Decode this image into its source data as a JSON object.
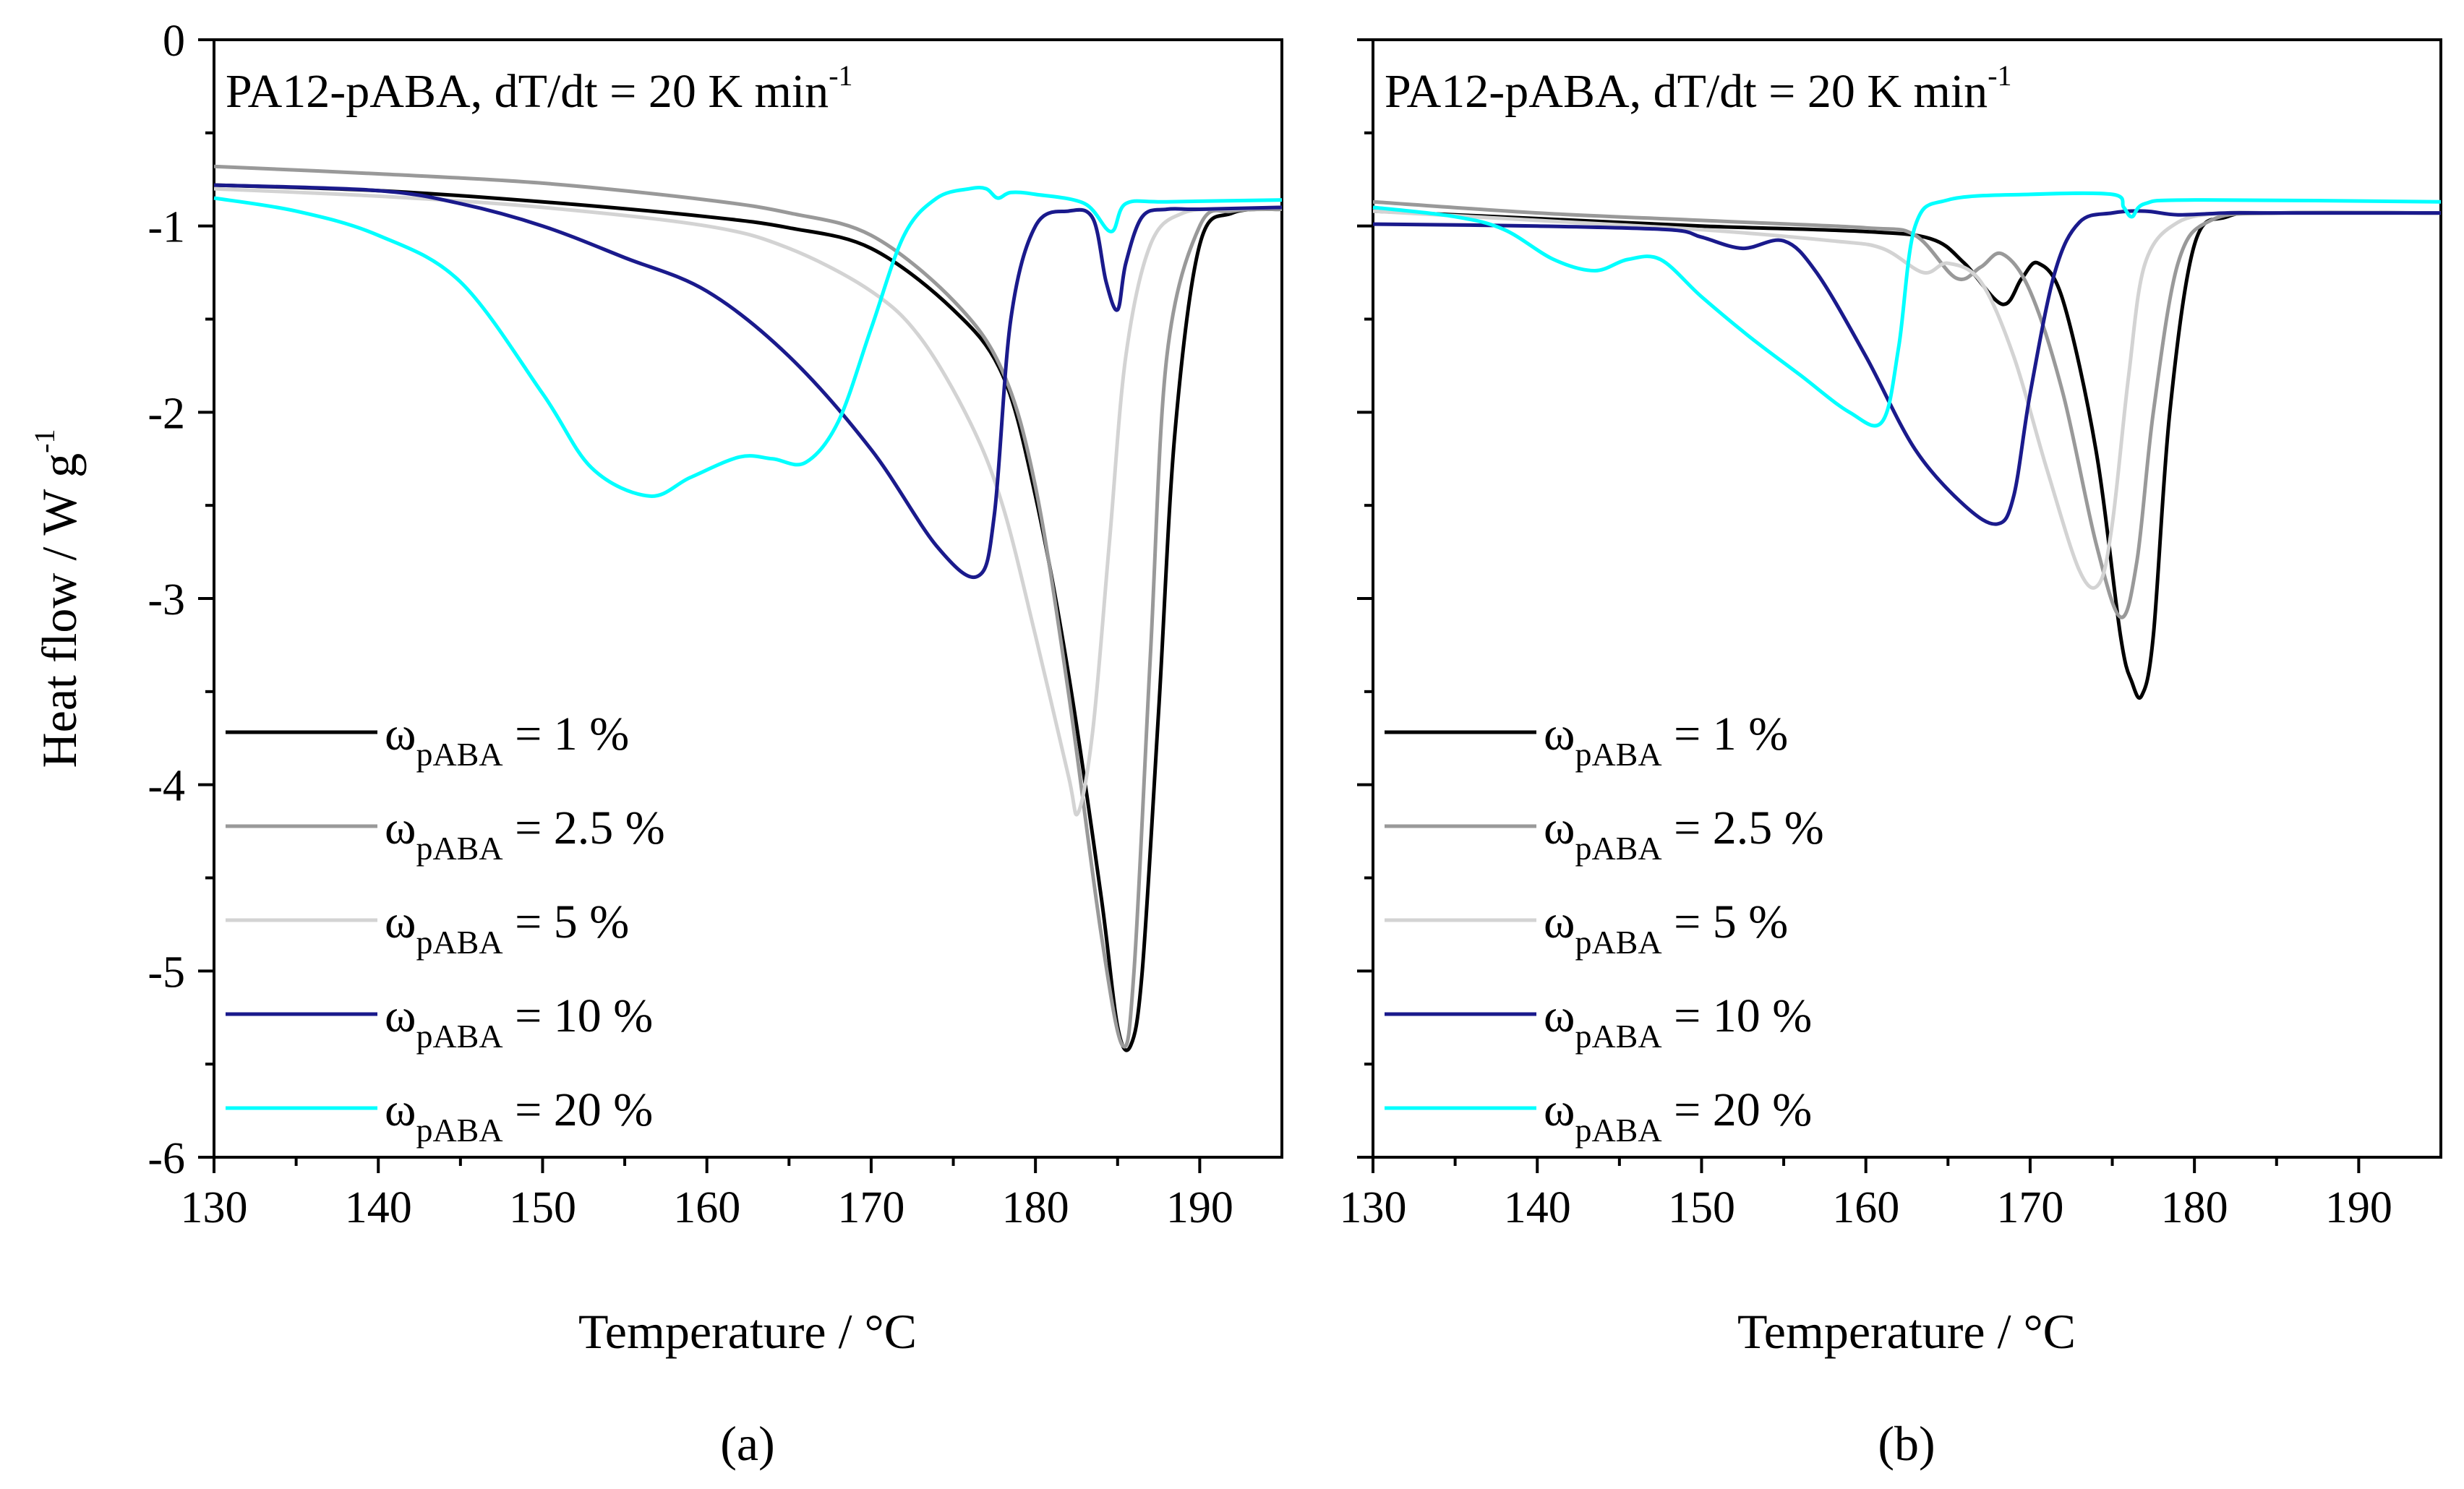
{
  "chart_data": [
    {
      "id": "a",
      "type": "line",
      "title": "PA12-pABA, dT/dt = 20 K min",
      "title_sup": "-1",
      "panel_label": "(a)",
      "xlabel": "Temperature / °C",
      "ylabel": "Heat flow / W g",
      "ylabel_sup": "-1",
      "xlim": [
        130,
        195
      ],
      "ylim": [
        -6,
        0
      ],
      "xticks": [
        130,
        140,
        150,
        160,
        170,
        180,
        190
      ],
      "yticks": [
        0,
        -1,
        -2,
        -3,
        -4,
        -5,
        -6
      ],
      "legend_position": "lower-left",
      "series": [
        {
          "name": "ω",
          "name_sub": "pABA",
          "name_rest": " = 1 %",
          "color": "#000000",
          "x": [
            130,
            140,
            150,
            160,
            165,
            170,
            175,
            178,
            180,
            182,
            184,
            185,
            185.8,
            186.5,
            187.5,
            188.5,
            190,
            192,
            195
          ],
          "y": [
            -0.78,
            -0.81,
            -0.87,
            -0.95,
            -1.01,
            -1.12,
            -1.45,
            -1.8,
            -2.45,
            -3.4,
            -4.6,
            -5.3,
            -5.4,
            -5.0,
            -3.6,
            -2.1,
            -1.1,
            -0.93,
            -0.91
          ]
        },
        {
          "name": "ω",
          "name_sub": "pABA",
          "name_rest": " = 2.5 %",
          "color": "#999999",
          "x": [
            130,
            140,
            150,
            160,
            165,
            170,
            175,
            178,
            180,
            182,
            184,
            185.3,
            186,
            187,
            188,
            190,
            192,
            195
          ],
          "y": [
            -0.68,
            -0.72,
            -0.77,
            -0.86,
            -0.93,
            -1.05,
            -1.4,
            -1.78,
            -2.4,
            -3.5,
            -4.8,
            -5.4,
            -5.0,
            -3.3,
            -1.7,
            -1.0,
            -0.92,
            -0.91
          ]
        },
        {
          "name": "ω",
          "name_sub": "pABA",
          "name_rest": " = 5 %",
          "color": "#d3d3d3",
          "x": [
            130,
            140,
            150,
            160,
            165,
            170,
            173,
            176,
            178,
            180,
            182,
            182.6,
            183.5,
            184.5,
            185.5,
            187,
            189,
            192,
            195
          ],
          "y": [
            -0.8,
            -0.84,
            -0.9,
            -1.0,
            -1.12,
            -1.35,
            -1.6,
            -2.05,
            -2.5,
            -3.2,
            -3.95,
            -4.15,
            -3.7,
            -2.7,
            -1.7,
            -1.1,
            -0.93,
            -0.91,
            -0.9
          ]
        },
        {
          "name": "ω",
          "name_sub": "pABA",
          "name_rest": " = 10 %",
          "color": "#1a1a8c",
          "x": [
            130,
            140,
            145,
            150,
            155,
            160,
            165,
            170,
            174,
            176.5,
            177.5,
            178.5,
            180,
            182,
            183.5,
            184.3,
            185,
            185.5,
            186.5,
            188,
            190,
            195
          ],
          "y": [
            -0.78,
            -0.81,
            -0.88,
            -1.0,
            -1.17,
            -1.35,
            -1.7,
            -2.2,
            -2.72,
            -2.88,
            -2.55,
            -1.5,
            -1.0,
            -0.92,
            -0.96,
            -1.3,
            -1.45,
            -1.2,
            -0.95,
            -0.91,
            -0.91,
            -0.9
          ]
        },
        {
          "name": "ω",
          "name_sub": "pABA",
          "name_rest": " = 20 %",
          "color": "#00ffff",
          "x": [
            130,
            135,
            140,
            145,
            150,
            153,
            156.5,
            159,
            162,
            164,
            166,
            168,
            170,
            172,
            174,
            176,
            177,
            177.7,
            178.5,
            180,
            183,
            184.6,
            185.5,
            188,
            195
          ],
          "y": [
            -0.85,
            -0.92,
            -1.05,
            -1.3,
            -1.9,
            -2.3,
            -2.45,
            -2.35,
            -2.24,
            -2.25,
            -2.27,
            -2.05,
            -1.55,
            -1.05,
            -0.85,
            -0.8,
            -0.8,
            -0.85,
            -0.82,
            -0.83,
            -0.88,
            -1.03,
            -0.88,
            -0.87,
            -0.86
          ]
        }
      ]
    },
    {
      "id": "b",
      "type": "line",
      "title": "PA12-pABA, dT/dt = 20 K min",
      "title_sup": "-1",
      "panel_label": "(b)",
      "xlabel": "Temperature / °C",
      "xlim": [
        130,
        195
      ],
      "ylim": [
        -6,
        0
      ],
      "xticks": [
        130,
        140,
        150,
        160,
        170,
        180,
        190
      ],
      "yticks": [
        0,
        -1,
        -2,
        -3,
        -4,
        -5,
        -6
      ],
      "legend_position": "lower-left",
      "series": [
        {
          "name": "ω",
          "name_sub": "pABA",
          "name_rest": " = 1 %",
          "color": "#000000",
          "x": [
            130,
            140,
            150,
            160,
            164,
            166,
            168.3,
            169.5,
            170.5,
            172,
            174,
            175.5,
            176.2,
            176.8,
            177.5,
            178.5,
            180,
            182,
            185,
            195
          ],
          "y": [
            -0.92,
            -0.96,
            -1.0,
            -1.03,
            -1.07,
            -1.2,
            -1.42,
            -1.28,
            -1.2,
            -1.4,
            -2.2,
            -3.2,
            -3.45,
            -3.52,
            -3.2,
            -2.0,
            -1.1,
            -0.95,
            -0.93,
            -0.93
          ]
        },
        {
          "name": "ω",
          "name_sub": "pABA",
          "name_rest": " = 2.5 %",
          "color": "#999999",
          "x": [
            130,
            140,
            150,
            160,
            163,
            165.5,
            167,
            168.3,
            170,
            172,
            174,
            175.5,
            176.5,
            177.5,
            179,
            181,
            185,
            195
          ],
          "y": [
            -0.87,
            -0.93,
            -0.97,
            -1.01,
            -1.05,
            -1.28,
            -1.22,
            -1.15,
            -1.35,
            -1.9,
            -2.7,
            -3.1,
            -2.8,
            -2.0,
            -1.2,
            -0.97,
            -0.93,
            -0.93
          ]
        },
        {
          "name": "ω",
          "name_sub": "pABA",
          "name_rest": " = 5 %",
          "color": "#d3d3d3",
          "x": [
            130,
            140,
            150,
            158,
            161,
            163.5,
            165,
            167,
            169,
            171,
            173,
            174.2,
            175,
            176,
            177,
            179,
            182,
            185,
            195
          ],
          "y": [
            -0.92,
            -0.97,
            -1.02,
            -1.08,
            -1.12,
            -1.25,
            -1.2,
            -1.3,
            -1.7,
            -2.3,
            -2.85,
            -2.92,
            -2.6,
            -1.8,
            -1.2,
            -0.98,
            -0.93,
            -0.93,
            -0.93
          ]
        },
        {
          "name": "ω",
          "name_sub": "pABA",
          "name_rest": " = 10 %",
          "color": "#1a1a8c",
          "x": [
            130,
            140,
            148,
            150,
            152.5,
            155,
            157,
            160,
            163,
            166,
            168,
            169,
            170,
            171.5,
            173,
            175,
            177,
            179,
            182,
            185,
            195
          ],
          "y": [
            -0.99,
            -1.0,
            -1.02,
            -1.06,
            -1.12,
            -1.08,
            -1.25,
            -1.7,
            -2.2,
            -2.5,
            -2.6,
            -2.45,
            -1.9,
            -1.25,
            -0.98,
            -0.93,
            -0.92,
            -0.94,
            -0.93,
            -0.93,
            -0.93
          ]
        },
        {
          "name": "ω",
          "name_sub": "pABA",
          "name_rest": " = 20 %",
          "color": "#00ffff",
          "x": [
            130,
            135,
            138,
            141,
            143.5,
            145.5,
            147.5,
            150,
            153,
            156,
            159,
            161,
            162,
            163,
            165,
            170,
            175,
            175.7,
            176.2,
            177,
            180,
            195
          ],
          "y": [
            -0.9,
            -0.95,
            -1.02,
            -1.18,
            -1.24,
            -1.18,
            -1.18,
            -1.38,
            -1.6,
            -1.8,
            -2.0,
            -2.05,
            -1.65,
            -1.0,
            -0.86,
            -0.83,
            -0.83,
            -0.9,
            -0.95,
            -0.88,
            -0.86,
            -0.87
          ]
        }
      ]
    }
  ]
}
